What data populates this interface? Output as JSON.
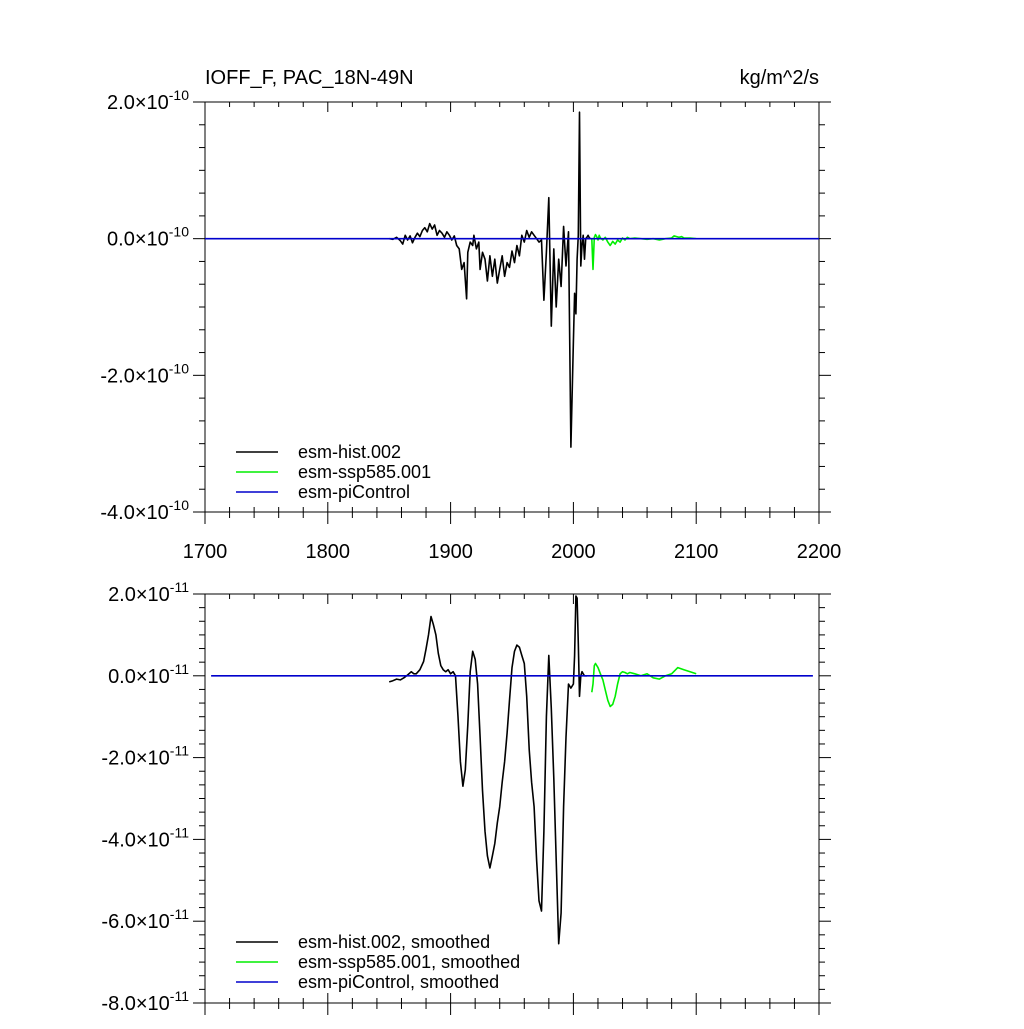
{
  "chart_data": [
    {
      "type": "line",
      "title_left": "IOFF_F, PAC_18N-49N",
      "title_right": "kg/m^2/s",
      "xlim": [
        1700,
        2200
      ],
      "x_ticks": [
        1700,
        1800,
        1900,
        2000,
        2100,
        2200
      ],
      "x_tick_labels": [
        "1700",
        "1800",
        "1900",
        "2000",
        "2100",
        "2200"
      ],
      "ylim": [
        -4e-10,
        2e-10
      ],
      "y_ticks": [
        2e-10,
        0.0,
        -2e-10,
        -4e-10
      ],
      "y_tick_mantissas": [
        "2.0",
        "0.0",
        "-2.0",
        "-4.0"
      ],
      "y_tick_exponents": [
        "-10",
        "-10",
        "-10",
        "-10"
      ],
      "grid": false,
      "legend_position": "bottom-left",
      "series": [
        {
          "name": "esm-hist.002",
          "color": "#000000",
          "x": [
            1850,
            1853,
            1856,
            1859,
            1861,
            1863,
            1865,
            1867,
            1869,
            1871,
            1873,
            1875,
            1877,
            1879,
            1881,
            1883,
            1885,
            1887,
            1889,
            1891,
            1893,
            1895,
            1897,
            1899,
            1901,
            1903,
            1905,
            1907,
            1909,
            1911,
            1913,
            1914,
            1916,
            1918,
            1919,
            1921,
            1923,
            1924,
            1926,
            1928,
            1930,
            1932,
            1934,
            1936,
            1938,
            1940,
            1942,
            1944,
            1946,
            1948,
            1950,
            1952,
            1954,
            1956,
            1958,
            1960,
            1962,
            1964,
            1966,
            1968,
            1970,
            1972,
            1974,
            1976,
            1978,
            1980,
            1982,
            1984,
            1986,
            1988,
            1990,
            1992,
            1994,
            1996,
            1998,
            2000,
            2001,
            2002,
            2003,
            2004,
            2005,
            2006,
            2007,
            2008,
            2009,
            2010,
            2011,
            2012,
            2013,
            2014
          ],
          "values": [
            0,
            -1e-12,
            2e-12,
            -3e-12,
            -8e-12,
            5e-12,
            -2e-12,
            4e-12,
            -6e-12,
            2e-12,
            8e-12,
            3e-12,
            1.2e-11,
            1.6e-11,
            1e-11,
            2.2e-11,
            1.4e-11,
            2e-11,
            5e-12,
            1.2e-11,
            8e-12,
            2e-12,
            1e-11,
            5e-12,
            -2e-12,
            4e-12,
            -1e-11,
            -1.5e-11,
            -4.5e-11,
            -3.5e-11,
            -8.8e-11,
            -2e-11,
            -5e-12,
            -1e-11,
            5e-12,
            -1.5e-11,
            -5e-12,
            -4.5e-11,
            -2e-11,
            -3e-11,
            -6.2e-11,
            -2.5e-11,
            -5.5e-11,
            -3e-11,
            -6.5e-11,
            -4.5e-11,
            -2.5e-11,
            -5.5e-11,
            -3.5e-11,
            -4.2e-11,
            -1.8e-11,
            -3.5e-11,
            -1e-11,
            -2.5e-11,
            5e-12,
            -5e-12,
            1.2e-11,
            2e-12,
            1e-11,
            5e-12,
            0.0,
            -5e-12,
            -2e-12,
            -9e-11,
            -2e-11,
            6e-11,
            -1.28e-10,
            -1.5e-11,
            -1e-10,
            -3e-11,
            -7e-11,
            1.8e-11,
            -4e-11,
            1e-11,
            -3.05e-10,
            -1.5e-10,
            -8e-11,
            -1.1e-10,
            -3e-11,
            5e-12,
            1.85e-10,
            -4e-11,
            -1e-11,
            5e-12,
            -3e-11,
            0.0,
            2e-12,
            5e-12,
            1e-12,
            0.0
          ]
        },
        {
          "name": "esm-ssp585.001",
          "color": "#00ee00",
          "x": [
            2015,
            2016,
            2017,
            2018,
            2019,
            2020,
            2021,
            2022,
            2024,
            2026,
            2028,
            2030,
            2032,
            2034,
            2036,
            2038,
            2040,
            2042,
            2044,
            2046,
            2050,
            2055,
            2060,
            2065,
            2070,
            2075,
            2080,
            2082,
            2084,
            2086,
            2088,
            2090,
            2095,
            2100
          ],
          "values": [
            0,
            -4.5e-11,
            2e-12,
            6e-12,
            3e-12,
            -2e-12,
            5e-12,
            1e-12,
            -2e-12,
            2e-12,
            -5e-12,
            -1e-11,
            -4e-12,
            -8e-12,
            -2e-12,
            -5e-12,
            1e-12,
            -2e-12,
            2e-12,
            0.0,
            1e-12,
            0.0,
            -1e-12,
            0.0,
            -2e-12,
            0.0,
            1e-12,
            4e-12,
            3e-12,
            2e-12,
            3e-12,
            1e-12,
            1e-12,
            0.0
          ]
        },
        {
          "name": "esm-piControl",
          "color": "#0000cc",
          "x": [
            1700,
            2200
          ],
          "values": [
            0,
            0
          ]
        }
      ]
    },
    {
      "type": "line",
      "xlim": [
        1700,
        2200
      ],
      "x_ticks": [
        1700,
        1800,
        1900,
        2000,
        2100,
        2200
      ],
      "ylim": [
        -8e-11,
        2e-11
      ],
      "y_ticks": [
        2e-11,
        0.0,
        -2e-11,
        -4e-11,
        -6e-11,
        -8e-11
      ],
      "y_tick_mantissas": [
        "2.0",
        "0.0",
        "-2.0",
        "-4.0",
        "-6.0",
        "-8.0"
      ],
      "y_tick_exponents": [
        "-11",
        "-11",
        "-11",
        "-11",
        "-11",
        "-11"
      ],
      "grid": false,
      "legend_position": "bottom-left",
      "series": [
        {
          "name": "esm-hist.002, smoothed",
          "color": "#000000",
          "x": [
            1850,
            1853,
            1856,
            1859,
            1862,
            1865,
            1868,
            1870,
            1872,
            1875,
            1878,
            1880,
            1882,
            1884,
            1886,
            1888,
            1890,
            1892,
            1894,
            1896,
            1898,
            1900,
            1902,
            1904,
            1906,
            1908,
            1910,
            1912,
            1914,
            1916,
            1918,
            1920,
            1922,
            1924,
            1926,
            1928,
            1930,
            1932,
            1934,
            1936,
            1938,
            1940,
            1942,
            1944,
            1946,
            1948,
            1950,
            1952,
            1954,
            1956,
            1958,
            1960,
            1962,
            1964,
            1966,
            1968,
            1970,
            1972,
            1974,
            1976,
            1978,
            1980,
            1982,
            1984,
            1986,
            1988,
            1990,
            1992,
            1994,
            1996,
            1998,
            2000,
            2001,
            2002,
            2003,
            2004,
            2005,
            2006,
            2007,
            2008,
            2009,
            2010,
            2011
          ],
          "values": [
            -1.5e-12,
            -1.2e-12,
            -8e-13,
            -1e-12,
            -5e-13,
            2e-13,
            1e-12,
            5e-13,
            5e-13,
            1.5e-12,
            3.5e-12,
            6.5e-12,
            1e-11,
            1.45e-11,
            1.25e-11,
            1e-11,
            5.5e-12,
            2.5e-12,
            1.5e-12,
            1e-12,
            1.5e-12,
            5e-13,
            1e-12,
            0.0,
            -1e-11,
            -2.1e-11,
            -2.7e-11,
            -2.3e-11,
            -1.2e-11,
            1e-12,
            6e-12,
            4e-12,
            -2e-12,
            -1.5e-11,
            -2.8e-11,
            -3.8e-11,
            -4.4e-11,
            -4.7e-11,
            -4.4e-11,
            -4.1e-11,
            -3.6e-11,
            -3.2e-11,
            -2.6e-11,
            -2.1e-11,
            -1.4e-11,
            -6e-12,
            2e-12,
            6e-12,
            7.5e-12,
            7e-12,
            5e-12,
            3e-12,
            -5e-12,
            -1.8e-11,
            -2.6e-11,
            -3.2e-11,
            -4.5e-11,
            -5.5e-11,
            -5.75e-11,
            -3.8e-11,
            -1e-11,
            5e-12,
            -8e-12,
            -2.5e-11,
            -4.5e-11,
            -6.55e-11,
            -5.8e-11,
            -3.2e-11,
            -1.5e-11,
            -2e-12,
            -3e-12,
            -2e-12,
            5e-12,
            1.95e-11,
            1.9e-11,
            8e-12,
            -5e-12,
            0.0,
            1e-12,
            5e-13,
            0.0,
            0.0,
            0.0
          ]
        },
        {
          "name": "esm-ssp585.001, smoothed",
          "color": "#00ee00",
          "x": [
            2015,
            2016,
            2017,
            2018,
            2020,
            2022,
            2024,
            2026,
            2028,
            2030,
            2032,
            2034,
            2036,
            2038,
            2040,
            2042,
            2044,
            2046,
            2050,
            2055,
            2060,
            2065,
            2070,
            2075,
            2080,
            2085,
            2090,
            2095,
            2100
          ],
          "values": [
            -4e-12,
            -2e-12,
            2.5e-12,
            3e-12,
            2e-12,
            5e-13,
            -1e-12,
            -3.5e-12,
            -6e-12,
            -7.5e-12,
            -7e-12,
            -5e-12,
            -2e-12,
            5e-13,
            1e-12,
            8e-13,
            5e-13,
            8e-13,
            5e-13,
            0.0,
            5e-13,
            -5e-13,
            -8e-13,
            0.0,
            5e-13,
            2e-12,
            1.5e-12,
            1e-12,
            5e-13
          ]
        },
        {
          "name": "esm-piControl, smoothed",
          "color": "#0000cc",
          "x": [
            1705,
            2195
          ],
          "values": [
            0,
            0
          ]
        }
      ]
    }
  ]
}
